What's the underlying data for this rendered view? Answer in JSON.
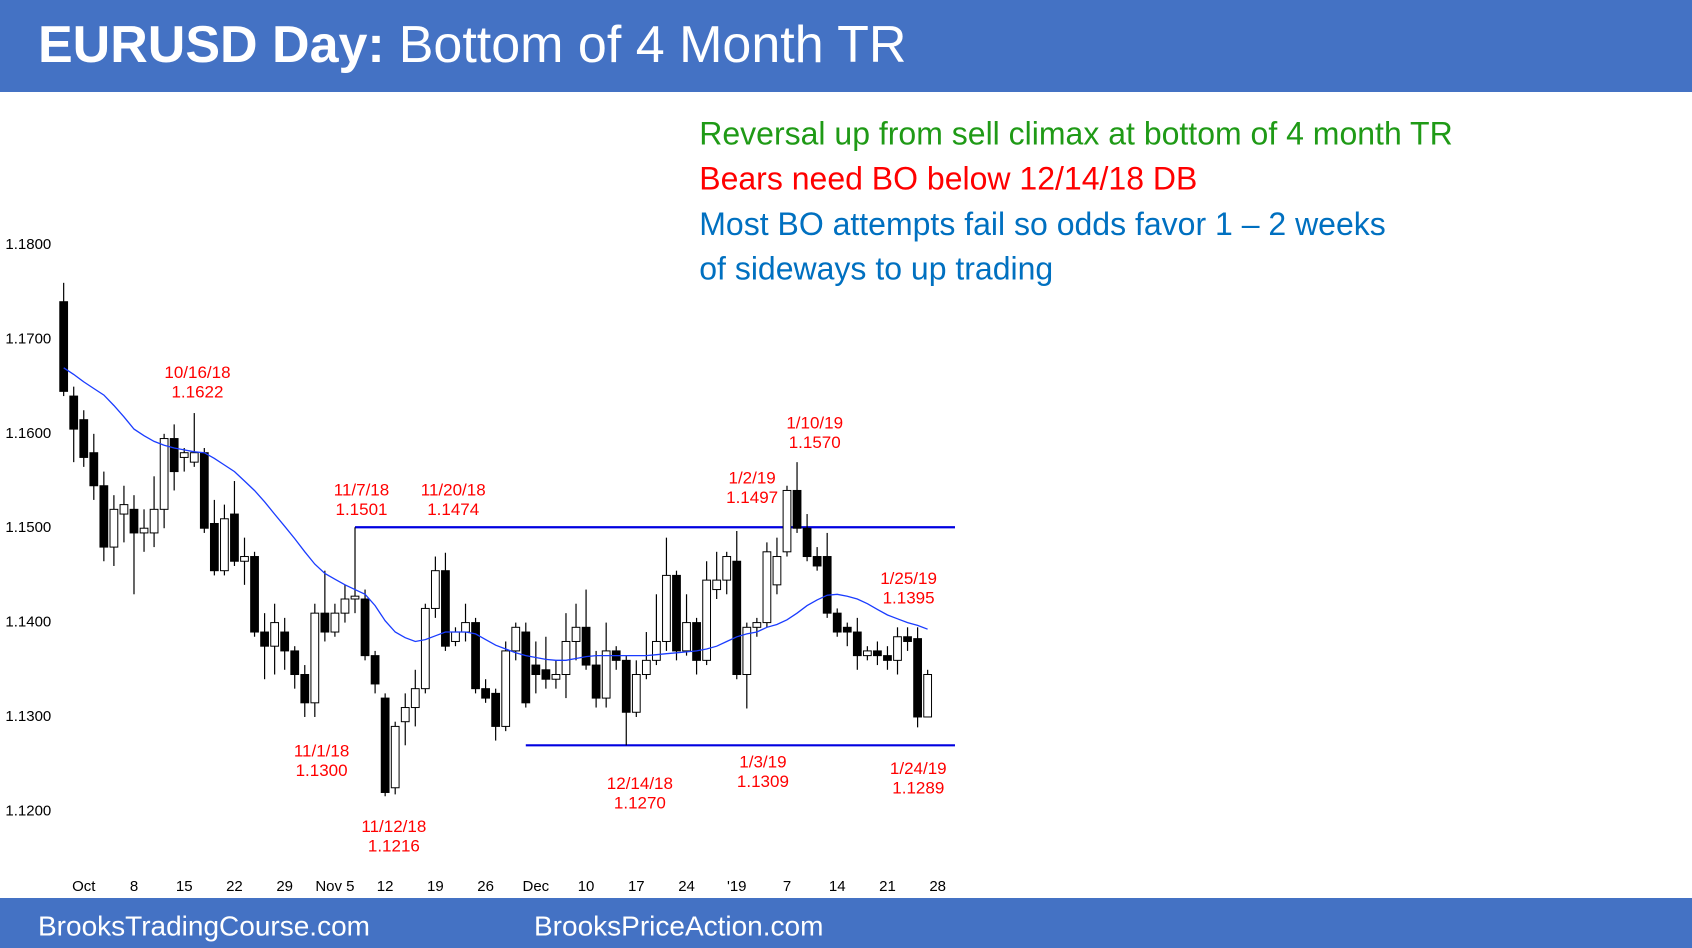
{
  "header": {
    "title_bold": "EURUSD Day:",
    "title_rest": "Bottom of 4 Month TR"
  },
  "notes": [
    {
      "text": "Reversal up from sell climax at bottom of 4 month TR",
      "color": "#1f9a16"
    },
    {
      "text": "Bears need BO below 12/14/18 DB",
      "color": "#ff0000"
    },
    {
      "text": "Most BO attempts fail so odds favor 1 – 2 weeks",
      "color": "#0070c0"
    },
    {
      "text": "of sideways to up trading",
      "color": "#0070c0"
    }
  ],
  "footer": {
    "left": "BrooksTradingCourse.com",
    "right": "BrooksPriceAction.com"
  },
  "chart_data": {
    "type": "candlestick",
    "categories": [
      null,
      null,
      "Oct",
      null,
      null,
      null,
      null,
      "8",
      null,
      null,
      null,
      null,
      "15",
      null,
      null,
      null,
      null,
      "22",
      null,
      null,
      null,
      null,
      "29",
      null,
      null,
      null,
      null,
      "Nov 5",
      null,
      null,
      null,
      null,
      "12",
      null,
      null,
      null,
      null,
      "19",
      null,
      null,
      null,
      null,
      "26",
      null,
      null,
      null,
      null,
      "Dec",
      null,
      null,
      null,
      null,
      "10",
      null,
      null,
      null,
      null,
      "17",
      null,
      null,
      null,
      null,
      "24",
      null,
      null,
      null,
      null,
      "'19",
      null,
      null,
      null,
      null,
      "7",
      null,
      null,
      null,
      null,
      "14",
      null,
      null,
      null,
      null,
      "21",
      null,
      null,
      null,
      null,
      "28"
    ],
    "open": [
      1.174,
      1.164,
      1.1615,
      1.158,
      1.1545,
      1.148,
      1.1515,
      1.152,
      1.1495,
      1.1495,
      1.152,
      1.1595,
      1.1575,
      1.157,
      1.158,
      1.1505,
      1.1455,
      1.1515,
      1.1465,
      1.147,
      1.139,
      1.1375,
      1.139,
      1.137,
      1.1345,
      1.1315,
      1.141,
      1.139,
      1.141,
      1.1425,
      1.1425,
      1.1365,
      1.132,
      1.1225,
      1.1295,
      1.131,
      1.133,
      1.1415,
      1.1455,
      1.138,
      1.139,
      1.14,
      1.133,
      1.1325,
      1.129,
      1.137,
      1.139,
      1.1355,
      1.135,
      1.134,
      1.1345,
      1.138,
      1.1395,
      1.1355,
      1.132,
      1.137,
      1.136,
      1.1305,
      1.1345,
      1.136,
      1.138,
      1.145,
      1.137,
      1.14,
      1.136,
      1.1435,
      1.1445,
      1.1465,
      1.1345,
      1.1395,
      1.14,
      1.144,
      1.1475,
      1.154,
      1.15,
      1.147,
      1.147,
      1.141,
      1.1395,
      1.139,
      1.1365,
      1.137,
      1.1365,
      1.136,
      1.1385,
      1.1383,
      1.13,
      null
    ],
    "high": [
      1.176,
      1.165,
      1.1625,
      1.16,
      1.156,
      1.1535,
      1.1545,
      1.1535,
      1.152,
      1.1555,
      1.16,
      1.161,
      1.1585,
      1.1622,
      1.1585,
      1.153,
      1.1525,
      1.155,
      1.149,
      1.1475,
      1.141,
      1.142,
      1.1405,
      1.1375,
      1.1355,
      1.142,
      1.1455,
      1.142,
      1.144,
      1.1501,
      1.1435,
      1.137,
      1.1325,
      1.1295,
      1.1325,
      1.135,
      1.142,
      1.147,
      1.1474,
      1.1395,
      1.142,
      1.1405,
      1.134,
      1.133,
      1.138,
      1.14,
      1.14,
      1.138,
      1.1385,
      1.136,
      1.141,
      1.142,
      1.1435,
      1.137,
      1.14,
      1.1375,
      1.1365,
      1.136,
      1.139,
      1.143,
      1.149,
      1.1455,
      1.143,
      1.1405,
      1.1465,
      1.1475,
      1.1475,
      1.1497,
      1.14,
      1.1405,
      1.1485,
      1.149,
      1.1545,
      1.157,
      1.1515,
      1.148,
      1.1495,
      1.1415,
      1.14,
      1.1405,
      1.1375,
      1.138,
      1.1375,
      1.1395,
      1.1395,
      1.1395,
      1.135,
      null
    ],
    "low": [
      1.164,
      1.157,
      1.1565,
      1.153,
      1.1465,
      1.146,
      1.1485,
      1.143,
      1.1475,
      1.148,
      1.15,
      1.154,
      1.156,
      1.1565,
      1.1495,
      1.145,
      1.145,
      1.146,
      1.144,
      1.1385,
      1.134,
      1.1345,
      1.135,
      1.133,
      1.13,
      1.13,
      1.138,
      1.1385,
      1.14,
      1.141,
      1.136,
      1.1325,
      1.1216,
      1.1218,
      1.127,
      1.129,
      1.1325,
      1.1405,
      1.137,
      1.1375,
      1.138,
      1.1325,
      1.1315,
      1.1275,
      1.1285,
      1.136,
      1.131,
      1.1325,
      1.133,
      1.133,
      1.132,
      1.136,
      1.135,
      1.131,
      1.131,
      1.135,
      1.127,
      1.13,
      1.134,
      1.1355,
      1.137,
      1.136,
      1.1365,
      1.1345,
      1.1355,
      1.1425,
      1.143,
      1.134,
      1.1309,
      1.1385,
      1.1395,
      1.143,
      1.147,
      1.1495,
      1.1465,
      1.1455,
      1.1405,
      1.1385,
      1.1375,
      1.135,
      1.136,
      1.1355,
      1.135,
      1.1345,
      1.137,
      1.1289,
      1.13,
      null
    ],
    "close": [
      1.1645,
      1.1605,
      1.1575,
      1.1545,
      1.148,
      1.152,
      1.1525,
      1.1495,
      1.15,
      1.152,
      1.1595,
      1.156,
      1.158,
      1.158,
      1.15,
      1.1455,
      1.151,
      1.1465,
      1.147,
      1.139,
      1.1375,
      1.14,
      1.137,
      1.1345,
      1.1315,
      1.141,
      1.139,
      1.141,
      1.1425,
      1.1428,
      1.1365,
      1.1335,
      1.122,
      1.129,
      1.131,
      1.133,
      1.1415,
      1.1455,
      1.1375,
      1.139,
      1.14,
      1.133,
      1.132,
      1.129,
      1.137,
      1.1395,
      1.1315,
      1.1345,
      1.134,
      1.1345,
      1.138,
      1.1395,
      1.1355,
      1.132,
      1.137,
      1.136,
      1.1305,
      1.1345,
      1.136,
      1.138,
      1.145,
      1.137,
      1.14,
      1.136,
      1.1445,
      1.1445,
      1.147,
      1.1345,
      1.1395,
      1.14,
      1.1475,
      1.147,
      1.154,
      1.15,
      1.147,
      1.146,
      1.141,
      1.139,
      1.139,
      1.1365,
      1.137,
      1.1365,
      1.136,
      1.1385,
      1.138,
      1.13,
      1.1345,
      null
    ],
    "ma": [
      1.167,
      1.1663,
      1.1655,
      1.1648,
      1.1641,
      1.163,
      1.1618,
      1.1605,
      1.1598,
      1.1592,
      1.1588,
      1.1585,
      1.1583,
      1.1581,
      1.158,
      1.1574,
      1.1567,
      1.156,
      1.155,
      1.154,
      1.1528,
      1.1515,
      1.1502,
      1.1489,
      1.1475,
      1.1462,
      1.1452,
      1.1446,
      1.144,
      1.1435,
      1.143,
      1.1418,
      1.1402,
      1.139,
      1.1384,
      1.138,
      1.1382,
      1.1386,
      1.139,
      1.139,
      1.139,
      1.1388,
      1.1382,
      1.1376,
      1.1372,
      1.1368,
      1.1365,
      1.1363,
      1.1361,
      1.136,
      1.136,
      1.1362,
      1.1364,
      1.1365,
      1.1365,
      1.1365,
      1.1365,
      1.1365,
      1.1365,
      1.1366,
      1.1367,
      1.1368,
      1.1369,
      1.137,
      1.1372,
      1.1375,
      1.138,
      1.1385,
      1.1388,
      1.139,
      1.1395,
      1.1398,
      1.1403,
      1.141,
      1.1418,
      1.1424,
      1.1429,
      1.143,
      1.1428,
      1.1425,
      1.142,
      1.1414,
      1.1408,
      1.1404,
      1.14,
      1.1397,
      1.1393,
      null
    ],
    "up_color": "#ffffff",
    "down_color": "#000000",
    "ma_color": "#1a3cff",
    "level_color": "#0000e0",
    "levels": [
      1.1501,
      1.127
    ],
    "ylim": [
      1.1145,
      1.1831
    ],
    "yticks": [
      {
        "value": 1.12,
        "label": "1.1200"
      },
      {
        "value": 1.13,
        "label": "1.1300"
      },
      {
        "value": 1.14,
        "label": "1.1400"
      },
      {
        "value": 1.15,
        "label": "1.1500"
      },
      {
        "value": 1.16,
        "label": "1.1600"
      },
      {
        "value": 1.17,
        "label": "1.1700"
      },
      {
        "value": 1.18,
        "label": "1.1800"
      }
    ],
    "annotations": [
      {
        "date": "10/16/18",
        "price": "1.1622"
      },
      {
        "date": "11/7/18",
        "price": "1.1501"
      },
      {
        "date": "11/20/18",
        "price": "1.1474"
      },
      {
        "date": "1/2/19",
        "price": "1.1497"
      },
      {
        "date": "1/10/19",
        "price": "1.1570"
      },
      {
        "date": "1/25/19",
        "price": "1.1395"
      },
      {
        "date": "11/1/18",
        "price": "1.1300"
      },
      {
        "date": "11/12/18",
        "price": "1.1216"
      },
      {
        "date": "12/14/18",
        "price": "1.1270"
      },
      {
        "date": "1/3/19",
        "price": "1.1309"
      },
      {
        "date": "1/24/19",
        "price": "1.1289"
      }
    ]
  }
}
